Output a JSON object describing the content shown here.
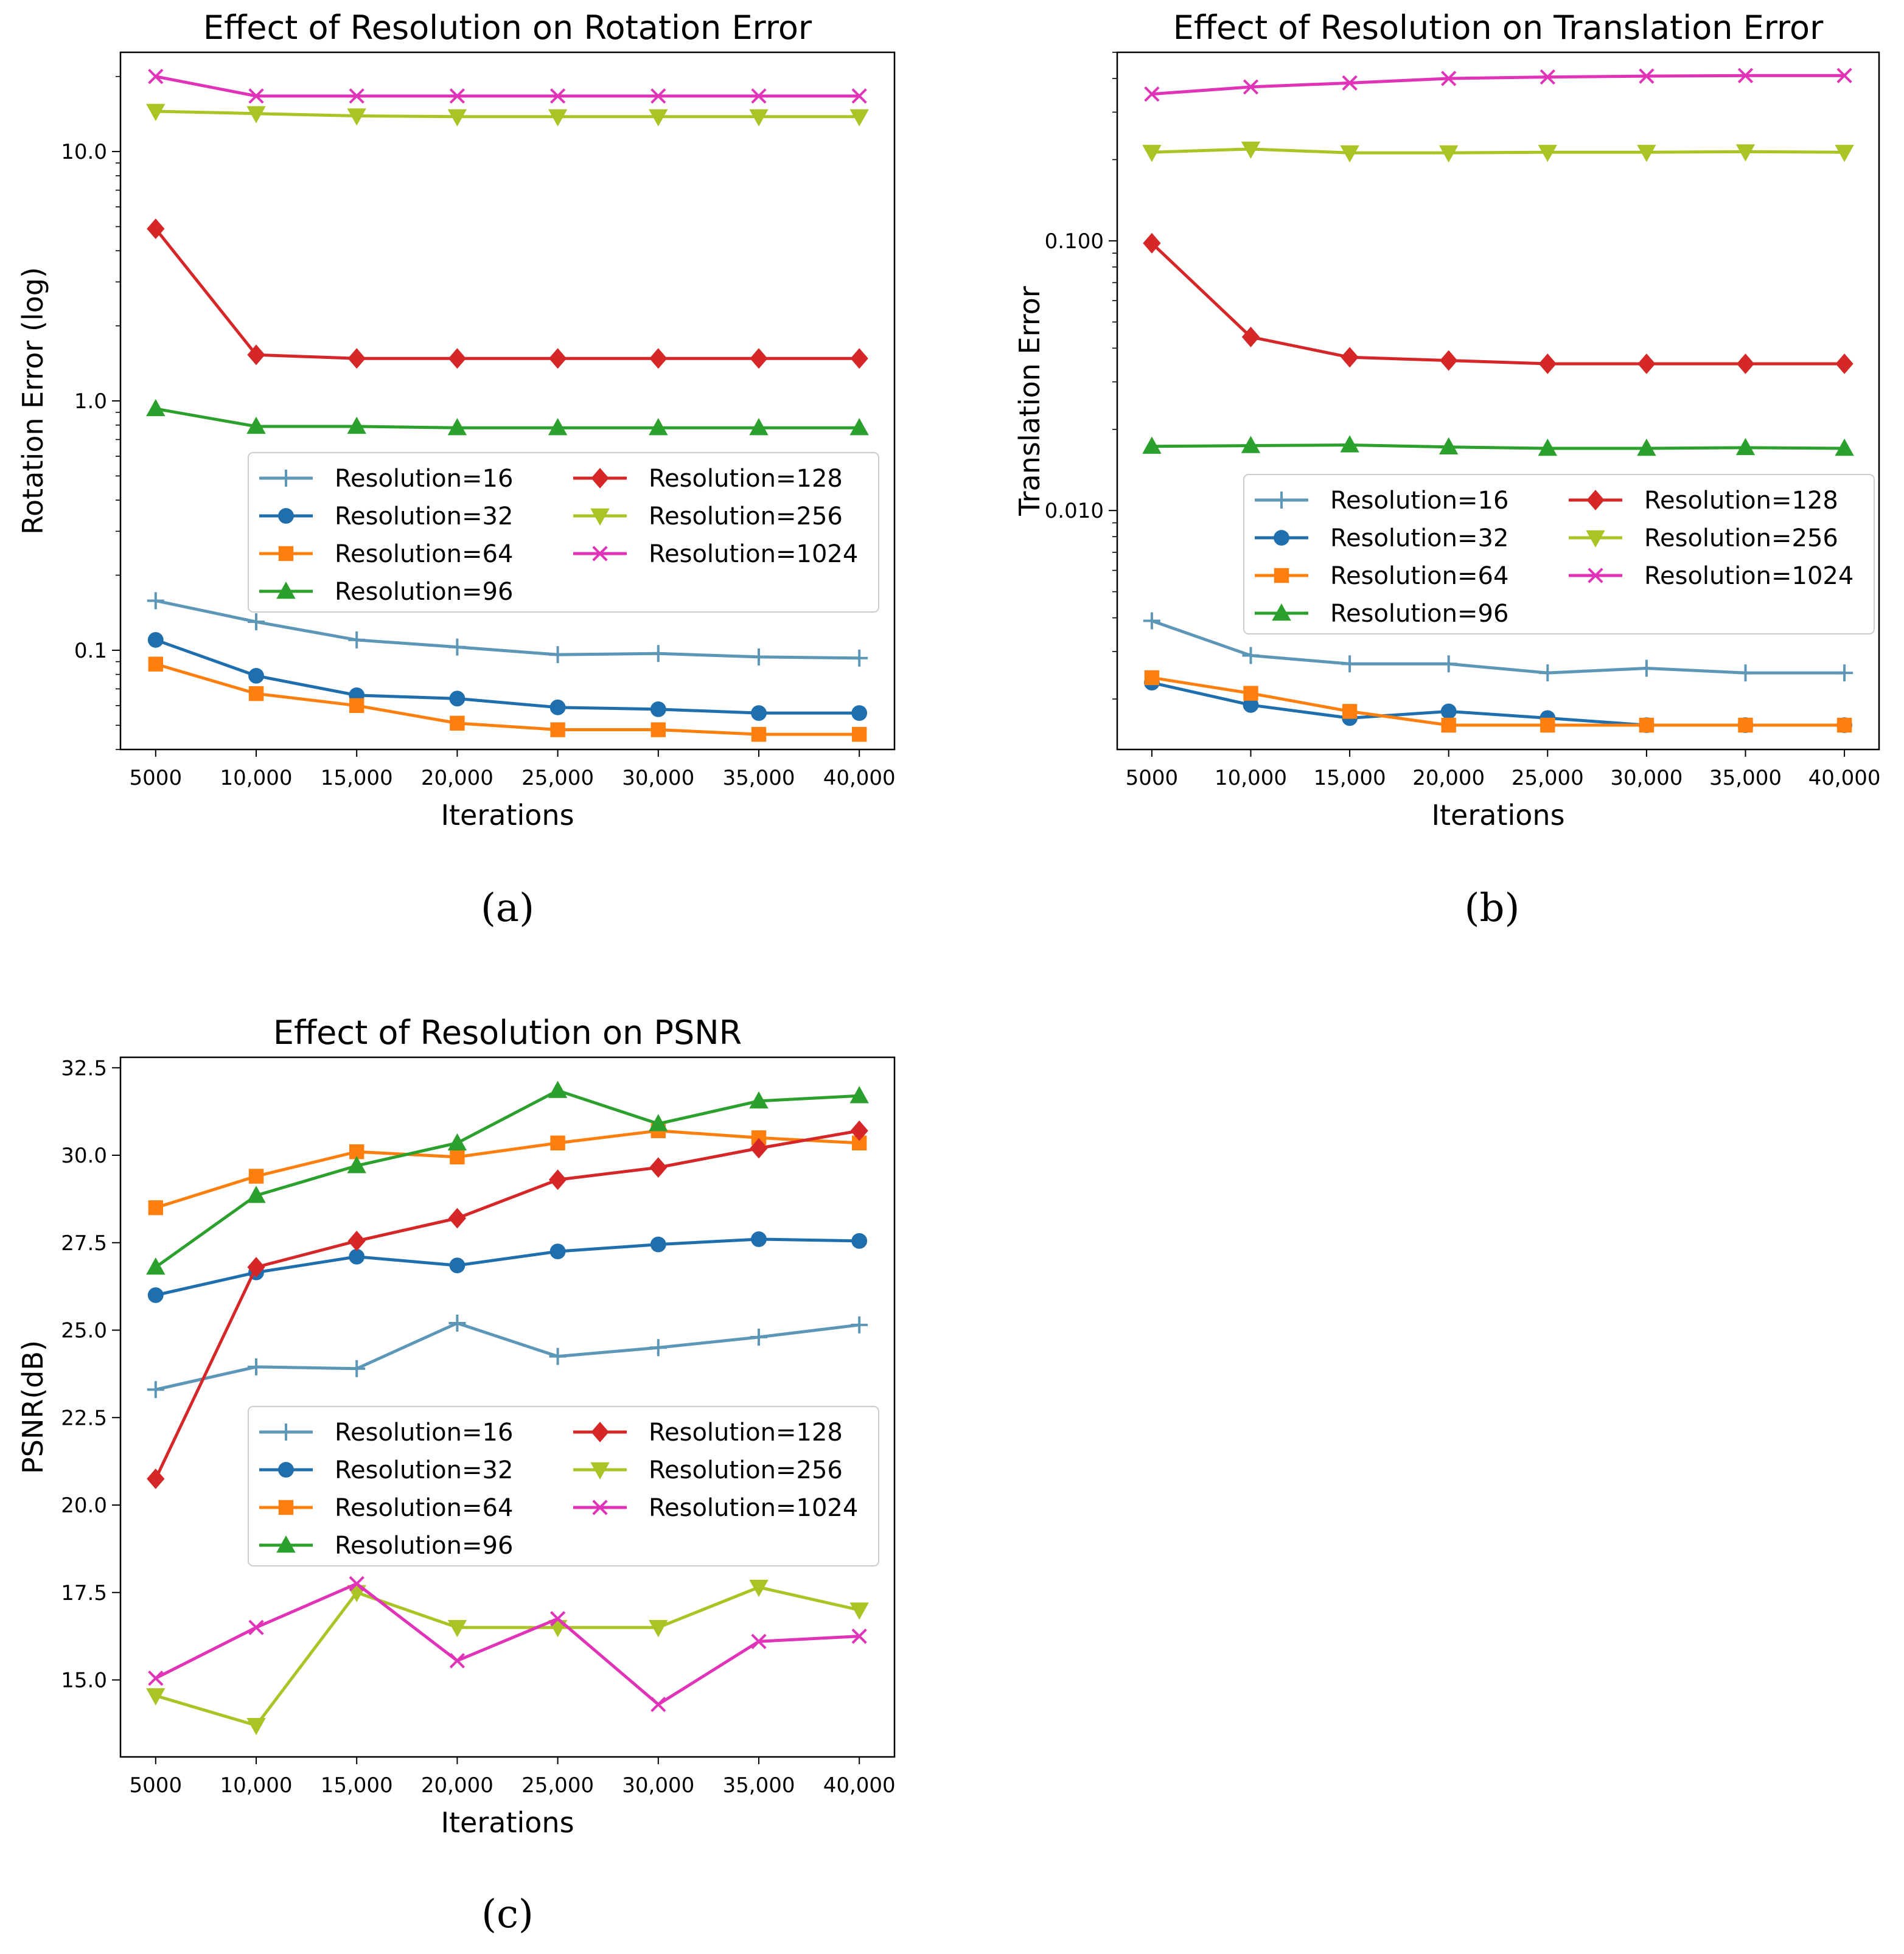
{
  "x_ticks": [
    "5000",
    "10,000",
    "15,000",
    "20,000",
    "25,000",
    "30,000",
    "35,000",
    "40,000"
  ],
  "series_styles": [
    {
      "name": "Resolution=16",
      "color": "#5d97b8",
      "marker": "plus"
    },
    {
      "name": "Resolution=32",
      "color": "#1f6fae",
      "marker": "circle"
    },
    {
      "name": "Resolution=64",
      "color": "#ff7f0e",
      "marker": "square"
    },
    {
      "name": "Resolution=96",
      "color": "#2ca02c",
      "marker": "triangle-up"
    },
    {
      "name": "Resolution=128",
      "color": "#d62728",
      "marker": "diamond"
    },
    {
      "name": "Resolution=256",
      "color": "#a9c424",
      "marker": "triangle-down"
    },
    {
      "name": "Resolution=1024",
      "color": "#e033b8",
      "marker": "x"
    }
  ],
  "captions": {
    "a": "(a)",
    "b": "(b)",
    "c": "(c)"
  },
  "chart_data": [
    {
      "type": "line",
      "title": "Effect of Resolution on Rotation Error",
      "xlabel": "Iterations",
      "ylabel": "Rotation Error (log)",
      "yscale": "log",
      "ylim": [
        0.04,
        25
      ],
      "yticks": [
        0.1,
        1.0,
        10.0
      ],
      "ytick_labels": [
        "0.1",
        "1.0",
        "10.0"
      ],
      "x": [
        5000,
        10000,
        15000,
        20000,
        25000,
        30000,
        35000,
        40000
      ],
      "legend": "center-right",
      "series": [
        {
          "name": "Resolution=16",
          "values": [
            0.158,
            0.13,
            0.11,
            0.103,
            0.096,
            0.097,
            0.094,
            0.093
          ]
        },
        {
          "name": "Resolution=32",
          "values": [
            0.11,
            0.079,
            0.066,
            0.064,
            0.059,
            0.058,
            0.056,
            0.056
          ]
        },
        {
          "name": "Resolution=64",
          "values": [
            0.088,
            0.067,
            0.06,
            0.051,
            0.048,
            0.048,
            0.046,
            0.046
          ]
        },
        {
          "name": "Resolution=96",
          "values": [
            0.93,
            0.79,
            0.79,
            0.78,
            0.78,
            0.78,
            0.78,
            0.78
          ]
        },
        {
          "name": "Resolution=128",
          "values": [
            4.9,
            1.53,
            1.48,
            1.48,
            1.48,
            1.48,
            1.48,
            1.48
          ]
        },
        {
          "name": "Resolution=256",
          "values": [
            14.5,
            14.2,
            13.9,
            13.8,
            13.8,
            13.8,
            13.8,
            13.8
          ]
        },
        {
          "name": "Resolution=1024",
          "values": [
            20.0,
            16.7,
            16.7,
            16.7,
            16.7,
            16.7,
            16.7,
            16.7
          ]
        }
      ]
    },
    {
      "type": "line",
      "title": "Effect of Resolution on Translation Error",
      "xlabel": "Iterations",
      "ylabel": "Translation Error",
      "yscale": "log",
      "ylim": [
        0.0013,
        0.5
      ],
      "yticks": [
        0.01,
        0.1
      ],
      "ytick_labels": [
        "0.010",
        "0.100"
      ],
      "x": [
        5000,
        10000,
        15000,
        20000,
        25000,
        30000,
        35000,
        40000
      ],
      "legend": "center-right",
      "series": [
        {
          "name": "Resolution=16",
          "values": [
            0.0039,
            0.0029,
            0.0027,
            0.0027,
            0.0025,
            0.0026,
            0.0025,
            0.0025
          ]
        },
        {
          "name": "Resolution=32",
          "values": [
            0.0023,
            0.0019,
            0.0017,
            0.0018,
            0.0017,
            0.0016,
            0.0016,
            0.0016
          ]
        },
        {
          "name": "Resolution=64",
          "values": [
            0.0024,
            0.0021,
            0.0018,
            0.0016,
            0.0016,
            0.0016,
            0.0016,
            0.0016
          ]
        },
        {
          "name": "Resolution=96",
          "values": [
            0.0173,
            0.0174,
            0.0175,
            0.0172,
            0.017,
            0.017,
            0.0171,
            0.017
          ]
        },
        {
          "name": "Resolution=128",
          "values": [
            0.098,
            0.044,
            0.037,
            0.036,
            0.035,
            0.035,
            0.035,
            0.035
          ]
        },
        {
          "name": "Resolution=256",
          "values": [
            0.213,
            0.219,
            0.212,
            0.212,
            0.213,
            0.213,
            0.214,
            0.213
          ]
        },
        {
          "name": "Resolution=1024",
          "values": [
            0.35,
            0.372,
            0.385,
            0.4,
            0.405,
            0.408,
            0.41,
            0.41
          ]
        }
      ]
    },
    {
      "type": "line",
      "title": "Effect of Resolution on PSNR",
      "xlabel": "Iterations",
      "ylabel": "PSNR(dB)",
      "yscale": "linear",
      "ylim": [
        12.8,
        32.8
      ],
      "yticks": [
        15.0,
        17.5,
        20.0,
        22.5,
        25.0,
        27.5,
        30.0,
        32.5
      ],
      "ytick_labels": [
        "15.0",
        "17.5",
        "20.0",
        "22.5",
        "25.0",
        "27.5",
        "30.0",
        "32.5"
      ],
      "x": [
        5000,
        10000,
        15000,
        20000,
        25000,
        30000,
        35000,
        40000
      ],
      "legend": "lower-right",
      "series": [
        {
          "name": "Resolution=16",
          "values": [
            23.3,
            23.95,
            23.9,
            25.2,
            24.25,
            24.5,
            24.8,
            25.15
          ]
        },
        {
          "name": "Resolution=32",
          "values": [
            26.0,
            26.65,
            27.1,
            26.85,
            27.25,
            27.45,
            27.6,
            27.55
          ]
        },
        {
          "name": "Resolution=64",
          "values": [
            28.5,
            29.4,
            30.1,
            29.95,
            30.35,
            30.7,
            30.5,
            30.35
          ]
        },
        {
          "name": "Resolution=96",
          "values": [
            26.8,
            28.85,
            29.7,
            30.35,
            31.85,
            30.9,
            31.55,
            31.7
          ]
        },
        {
          "name": "Resolution=128",
          "values": [
            20.75,
            26.8,
            27.55,
            28.2,
            29.3,
            29.65,
            30.2,
            30.7
          ]
        },
        {
          "name": "Resolution=256",
          "values": [
            14.55,
            13.7,
            17.5,
            16.5,
            16.5,
            16.5,
            17.65,
            17.0
          ]
        },
        {
          "name": "Resolution=1024",
          "values": [
            15.05,
            16.5,
            17.75,
            15.55,
            16.75,
            14.3,
            16.1,
            16.25
          ]
        }
      ]
    }
  ]
}
